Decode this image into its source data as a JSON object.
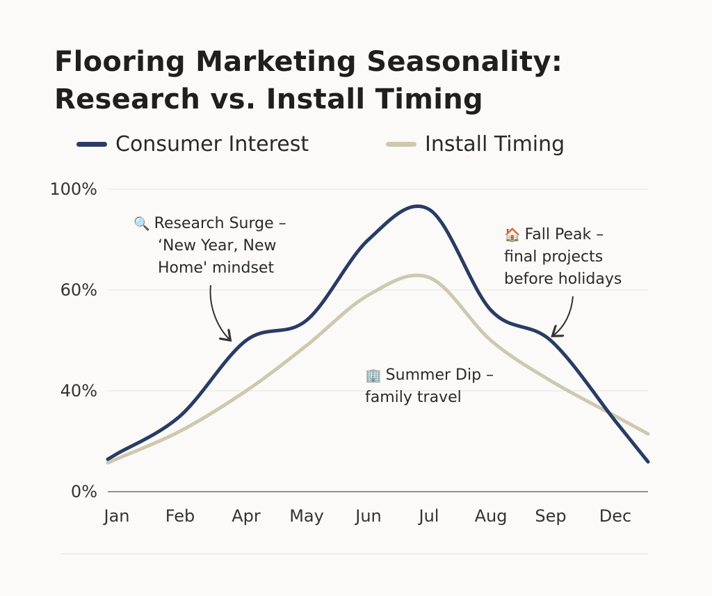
{
  "chart_data": {
    "type": "line",
    "title": "Flooring Marketing Seasonality: Research vs. Install Timing",
    "title_lines": [
      "Flooring Marketing Seasonality:",
      "Research vs. Install Timing"
    ],
    "xlabel": "",
    "ylabel": "",
    "categories": [
      "Jan",
      "Feb",
      "Apr",
      "May",
      "Jun",
      "Jul",
      "Aug",
      "Sep",
      "Dec"
    ],
    "y_ticks": [
      "0%",
      "40%",
      "60%",
      "100%"
    ],
    "y_tick_values": [
      0,
      40,
      60,
      100
    ],
    "ylim": [
      0,
      100
    ],
    "grid": true,
    "legend_position": "top",
    "series": [
      {
        "name": "Consumer Interest",
        "color": "#283c64",
        "values": [
          15,
          30,
          50,
          54,
          80,
          92,
          56,
          50,
          28
        ]
      },
      {
        "name": "Install Timing",
        "color": "#cfc8b0",
        "values": [
          13,
          24,
          40,
          49,
          59,
          65,
          50,
          42,
          30
        ]
      }
    ],
    "annotations": [
      {
        "icon": "magnifier-icon",
        "glyph": "🔍",
        "lines": [
          "Research Surge –",
          "‘New Year, New",
          "Home' mindset"
        ]
      },
      {
        "icon": "house-icon",
        "glyph": "🏠",
        "lines": [
          "Fall Peak –",
          "final projects",
          "before holidays"
        ]
      },
      {
        "icon": "buildings-icon",
        "glyph": "🏢",
        "lines": [
          "Summer Dip –",
          "family travel"
        ]
      }
    ]
  }
}
